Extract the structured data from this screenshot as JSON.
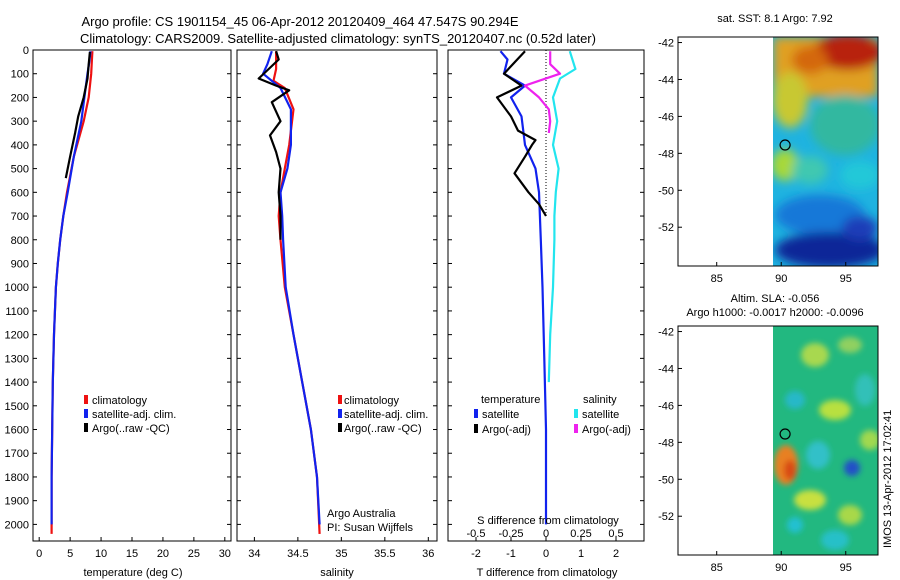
{
  "header": {
    "title_line1": "Argo profile: CS 1901154_45 06-Apr-2012 20120409_464 47.547S 90.294E",
    "title_line2": "Climatology: CARS2009. Satellite-adjusted climatology: synTS_20120407.nc (0.52d later)"
  },
  "colors": {
    "climatology": "#ee1111",
    "satellite": "#1122ee",
    "argo": "#000000",
    "salinity_satellite": "#22e5ee",
    "salinity_argo": "#ee22ee"
  },
  "chart_data": [
    {
      "type": "line",
      "name": "temperature",
      "xlabel": "temperature (deg C)",
      "ylabel": "",
      "xlim": [
        -1,
        31
      ],
      "ylim": [
        2070,
        0
      ],
      "xticks": [
        "0",
        "5",
        "10",
        "15",
        "20",
        "25",
        "30"
      ],
      "xtick_values": [
        0,
        5,
        10,
        15,
        20,
        25,
        30
      ],
      "yticks": [
        "0",
        "100",
        "200",
        "300",
        "400",
        "500",
        "600",
        "700",
        "800",
        "900",
        "1000",
        "1100",
        "1200",
        "1300",
        "1400",
        "1500",
        "1600",
        "1700",
        "1800",
        "1900",
        "2000"
      ],
      "ytick_values": [
        0,
        100,
        200,
        300,
        400,
        500,
        600,
        700,
        800,
        900,
        1000,
        1100,
        1200,
        1300,
        1400,
        1500,
        1600,
        1700,
        1800,
        1900,
        2000
      ],
      "legend": [
        "climatology",
        "satellite-adj. clim.",
        "Argo(..raw -QC)"
      ],
      "series": [
        {
          "name": "climatology",
          "x": [
            8.6,
            8.5,
            8.4,
            8.0,
            7.2,
            5.6,
            4.5,
            3.9,
            3.4,
            3.0,
            2.7,
            2.4,
            2.2,
            2.1,
            2.0,
            2.0
          ],
          "y": [
            5,
            50,
            100,
            200,
            300,
            450,
            600,
            700,
            800,
            900,
            1000,
            1200,
            1400,
            1600,
            1800,
            2040
          ]
        },
        {
          "name": "satellite-adj. clim.",
          "x": [
            8.3,
            8.1,
            7.8,
            7.3,
            6.8,
            5.6,
            4.6,
            3.9,
            3.4,
            3.0,
            2.7,
            2.4,
            2.2,
            2.1,
            2.0,
            2.0
          ],
          "y": [
            5,
            50,
            100,
            200,
            300,
            450,
            600,
            700,
            800,
            900,
            1000,
            1200,
            1400,
            1600,
            1800,
            2000
          ]
        },
        {
          "name": "Argo(..raw -QC)",
          "x": [
            8.2,
            8.0,
            7.8,
            7.2,
            6.3,
            5.8,
            5.0,
            4.3
          ],
          "y": [
            8,
            60,
            120,
            200,
            280,
            350,
            450,
            540
          ]
        }
      ]
    },
    {
      "type": "line",
      "name": "salinity",
      "xlabel": "salinity",
      "ylabel": "",
      "xlim": [
        33.8,
        36.1
      ],
      "ylim": [
        2070,
        0
      ],
      "xticks": [
        "34",
        "34.5",
        "35",
        "35.5",
        "36"
      ],
      "xtick_values": [
        34,
        34.5,
        35,
        35.5,
        36
      ],
      "legend": [
        "climatology",
        "satellite-adj. clim.",
        "Argo(..raw -QC)"
      ],
      "annotation": [
        "Argo Australia",
        "PI: Susan Wijffels"
      ],
      "series": [
        {
          "name": "climatology",
          "x": [
            34.25,
            34.25,
            34.22,
            34.35,
            34.45,
            34.4,
            34.35,
            34.3,
            34.28,
            34.3,
            34.35,
            34.45,
            34.55,
            34.65,
            34.72,
            34.75
          ],
          "y": [
            5,
            80,
            130,
            160,
            250,
            400,
            500,
            600,
            700,
            800,
            1000,
            1200,
            1400,
            1600,
            1800,
            2040
          ]
        },
        {
          "name": "satellite-adj. clim.",
          "x": [
            34.2,
            34.15,
            34.1,
            34.3,
            34.42,
            34.42,
            34.38,
            34.3,
            34.32,
            34.33,
            34.36,
            34.45,
            34.55,
            34.65,
            34.72,
            34.75
          ],
          "y": [
            5,
            60,
            100,
            160,
            250,
            400,
            500,
            600,
            700,
            800,
            1000,
            1200,
            1400,
            1600,
            1800,
            2000
          ]
        },
        {
          "name": "Argo(..raw -QC)",
          "x": [
            34.25,
            34.28,
            34.05,
            34.25,
            34.4,
            34.2,
            34.3,
            34.18,
            34.25,
            34.3,
            34.28,
            34.3,
            34.3
          ],
          "y": [
            5,
            40,
            120,
            150,
            170,
            220,
            300,
            360,
            430,
            500,
            600,
            700,
            800
          ]
        }
      ]
    },
    {
      "type": "line",
      "name": "difference",
      "xlabel": "T difference from climatology",
      "xlabel_top": "S difference from climatology",
      "xlim": [
        -2.8,
        2.8
      ],
      "ylim": [
        2070,
        0
      ],
      "xticks": [
        "-2",
        "-1",
        "0",
        "1",
        "2"
      ],
      "xtick_values": [
        -2,
        -1,
        0,
        1,
        2
      ],
      "s_xticks": [
        "-0.5",
        "-0.25",
        "0",
        "0.25",
        "0.5"
      ],
      "s_xtick_values": [
        -0.5,
        -0.25,
        0,
        0.25,
        0.5
      ],
      "legend_titles": [
        "temperature",
        "salinity"
      ],
      "legend": [
        "satellite",
        "Argo(-adj)",
        "satellite",
        "Argo(-adj)"
      ],
      "series": [
        {
          "name": "temperature satellite",
          "x": [
            -1.3,
            -1.1,
            -1.2,
            -0.6,
            -1.0,
            -0.7,
            -0.6,
            -0.3,
            -0.2,
            -0.15,
            -0.1,
            -0.05,
            0,
            0
          ],
          "y": [
            5,
            40,
            100,
            150,
            200,
            280,
            400,
            500,
            600,
            800,
            1000,
            1300,
            1600,
            2000
          ]
        },
        {
          "name": "temperature Argo(-adj)",
          "x": [
            -0.6,
            -1.2,
            -0.7,
            -1.4,
            -1.0,
            -0.8,
            -0.3,
            -0.4,
            -0.6,
            -0.9,
            -0.5,
            -0.2,
            0
          ],
          "y": [
            5,
            100,
            150,
            200,
            280,
            340,
            380,
            400,
            450,
            520,
            600,
            650,
            700
          ]
        },
        {
          "name": "salinity satellite",
          "x": [
            0.17,
            0.21,
            0.1,
            0.05,
            0.08,
            0.05,
            0.09,
            0.07,
            0.06,
            0.06,
            0.05,
            0.03,
            0.02
          ],
          "y": [
            5,
            80,
            120,
            200,
            300,
            400,
            500,
            600,
            700,
            800,
            1000,
            1200,
            1400
          ]
        },
        {
          "name": "salinity Argo(-adj)",
          "x": [
            0.03,
            0.03,
            0.1,
            -0.15,
            -0.05,
            0.02,
            0.03,
            0.02
          ],
          "y": [
            5,
            60,
            100,
            150,
            200,
            250,
            300,
            350
          ]
        }
      ]
    }
  ],
  "maps": {
    "sst": {
      "title": "sat. SST: 8.1 Argo: 7.92",
      "xticks": [
        "85",
        "90",
        "95"
      ],
      "xtick_values": [
        85,
        90,
        95
      ],
      "yticks": [
        "-42",
        "-44",
        "-46",
        "-48",
        "-50",
        "-52"
      ],
      "ytick_values": [
        -42,
        -44,
        -46,
        -48,
        -50,
        -52
      ],
      "lon_range": [
        82,
        97.5
      ],
      "lat_range": [
        -54.1,
        -41.7
      ],
      "marker": {
        "lon": 90.3,
        "lat": -47.55
      }
    },
    "sla": {
      "title_line1": "Altim. SLA: -0.056",
      "title_line2": "Argo h1000: -0.0017 h2000: -0.0096",
      "xticks": [
        "85",
        "90",
        "95"
      ],
      "xtick_values": [
        85,
        90,
        95
      ],
      "yticks": [
        "-42",
        "-44",
        "-46",
        "-48",
        "-50",
        "-52"
      ],
      "ytick_values": [
        -42,
        -44,
        -46,
        -48,
        -50,
        -52
      ],
      "lon_range": [
        82,
        97.5
      ],
      "lat_range": [
        -54.1,
        -41.7
      ],
      "marker": {
        "lon": 90.3,
        "lat": -47.55
      }
    }
  },
  "footer": {
    "stamp": "IMOS 13-Apr-2012 17:02:41"
  }
}
